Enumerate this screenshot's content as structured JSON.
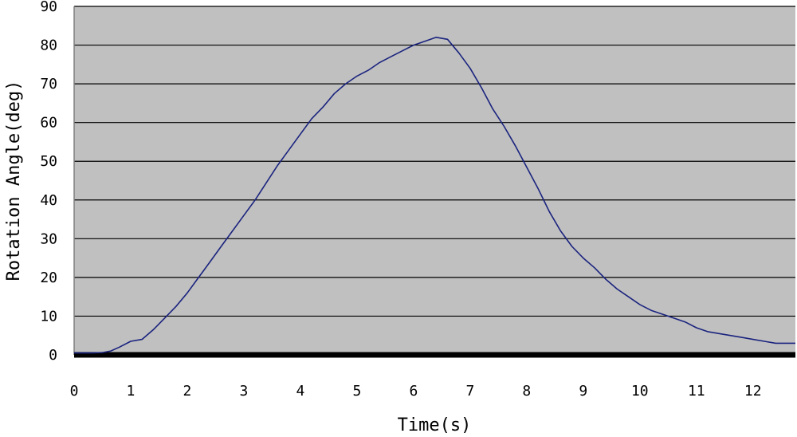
{
  "chart_data": {
    "type": "line",
    "title": "",
    "xlabel": "Time(s)",
    "ylabel": "Rotation Angle(deg)",
    "xlim": [
      0,
      12.75
    ],
    "ylim": [
      0,
      90
    ],
    "xticks": [
      0,
      1,
      2,
      3,
      4,
      5,
      6,
      7,
      8,
      9,
      10,
      11,
      12
    ],
    "yticks": [
      0,
      10,
      20,
      30,
      40,
      50,
      60,
      70,
      80,
      90
    ],
    "grid": true,
    "legend": "none",
    "plot_background": "#c0c0c0",
    "gridline_color": "#000000",
    "line_color": "#1a237e",
    "series": [
      {
        "x": [
          0,
          0.3,
          0.5,
          0.65,
          0.8,
          1.0,
          1.2,
          1.4,
          1.6,
          1.8,
          2.0,
          2.2,
          2.4,
          2.6,
          2.8,
          3.0,
          3.2,
          3.4,
          3.6,
          3.8,
          4.0,
          4.2,
          4.4,
          4.6,
          4.8,
          5.0,
          5.2,
          5.4,
          5.6,
          5.8,
          6.0,
          6.2,
          6.4,
          6.6,
          6.8,
          7.0,
          7.2,
          7.4,
          7.6,
          7.8,
          8.0,
          8.2,
          8.4,
          8.6,
          8.8,
          9.0,
          9.2,
          9.4,
          9.6,
          9.8,
          10.0,
          10.2,
          10.4,
          10.6,
          10.8,
          11.0,
          11.2,
          11.4,
          11.6,
          11.8,
          12.0,
          12.2,
          12.4,
          12.75
        ],
        "values": [
          0.5,
          0.5,
          0.6,
          1.0,
          2.0,
          3.5,
          4.0,
          6.5,
          9.5,
          12.5,
          16.0,
          20.0,
          24.0,
          28.0,
          32.0,
          36.0,
          40.0,
          44.5,
          49.0,
          53.0,
          57.0,
          61.0,
          64.0,
          67.5,
          70.0,
          72.0,
          73.5,
          75.5,
          77.0,
          78.5,
          80.0,
          81.0,
          82.0,
          81.5,
          78.0,
          74.0,
          69.0,
          63.5,
          59.0,
          54.0,
          48.5,
          43.0,
          37.0,
          32.0,
          28.0,
          25.0,
          22.5,
          19.5,
          17.0,
          15.0,
          13.0,
          11.5,
          10.5,
          9.5,
          8.5,
          7.0,
          6.0,
          5.5,
          5.0,
          4.5,
          4.0,
          3.5,
          3.0,
          3.0
        ]
      }
    ]
  }
}
